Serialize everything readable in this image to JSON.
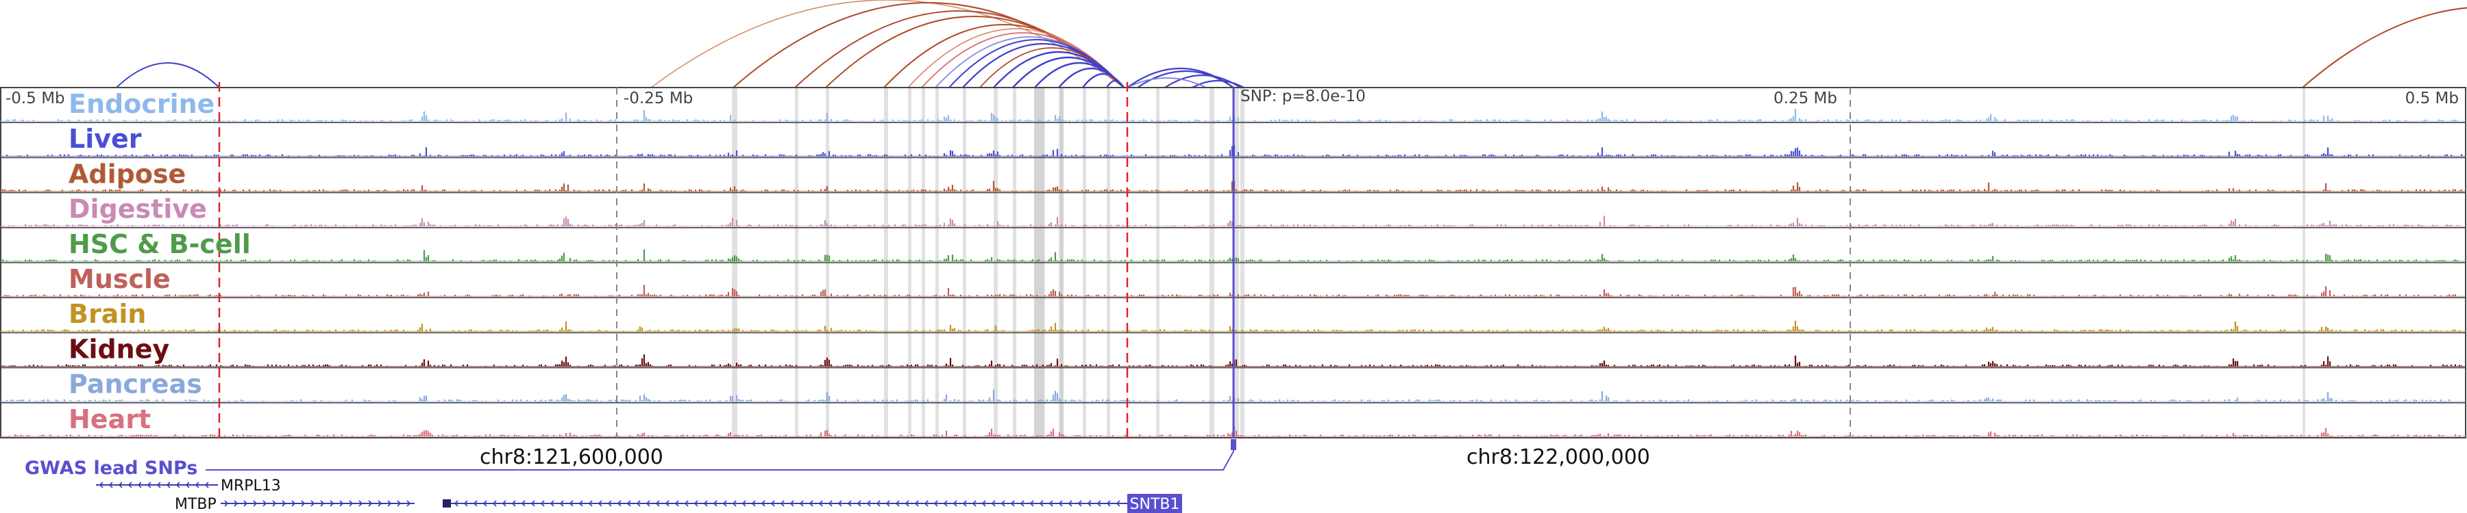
{
  "axis": {
    "ticks": [
      "-0.5 Mb",
      "-0.25 Mb",
      "0.25 Mb",
      "0.5 Mb"
    ],
    "snp_label": "SNP: p=8.0e-10",
    "coords": [
      "chr8:121,600,000",
      "chr8:122,000,000"
    ]
  },
  "tracks": [
    {
      "name": "Endocrine",
      "color": "#8fb8ec"
    },
    {
      "name": "Liver",
      "color": "#4a4fd6"
    },
    {
      "name": "Adipose",
      "color": "#b05a35"
    },
    {
      "name": "Digestive",
      "color": "#c98ab4"
    },
    {
      "name": "HSC & B-cell",
      "color": "#4f9b4a"
    },
    {
      "name": "Muscle",
      "color": "#c0605a"
    },
    {
      "name": "Brain",
      "color": "#c39220"
    },
    {
      "name": "Kidney",
      "color": "#6b0e14"
    },
    {
      "name": "Pancreas",
      "color": "#8aa8dc"
    },
    {
      "name": "Heart",
      "color": "#d87080"
    }
  ],
  "gwas": {
    "label": "GWAS lead SNPs",
    "color": "#5a4fcf"
  },
  "genes": [
    "MRPL13",
    "MTBP",
    "SNTB1"
  ],
  "colors": {
    "loop_blue": "#4040cc",
    "loop_brown": "#b04a2a",
    "highlight": "#5a4fcf",
    "guide_red": "#e0202a"
  }
}
